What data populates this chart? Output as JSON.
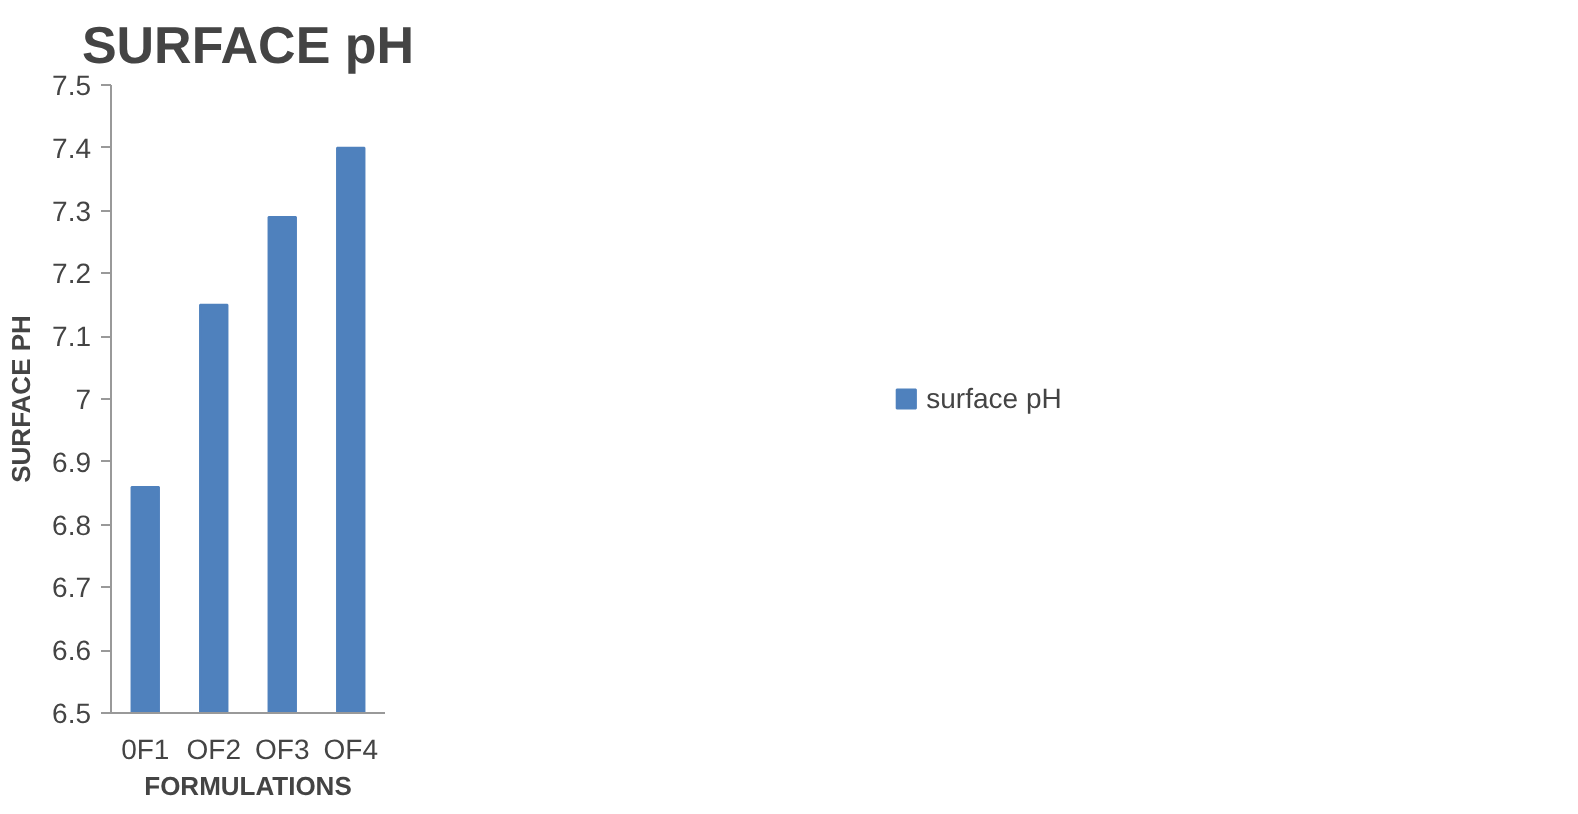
{
  "chart_data": {
    "type": "bar",
    "title": "SURFACE pH",
    "xlabel": "FORMULATIONS",
    "ylabel": "SURFACE PH",
    "categories": [
      "0F1",
      "OF2",
      "OF3",
      "OF4"
    ],
    "series": [
      {
        "name": "surface pH",
        "color": "#4f81bd",
        "values": [
          6.86,
          7.15,
          7.29,
          7.4
        ]
      }
    ],
    "ylim": [
      6.5,
      7.5
    ],
    "yticks": [
      6.5,
      6.6,
      6.7,
      6.8,
      6.9,
      7,
      7.1,
      7.2,
      7.3,
      7.4,
      7.5
    ],
    "grid": false,
    "legend": "right"
  }
}
